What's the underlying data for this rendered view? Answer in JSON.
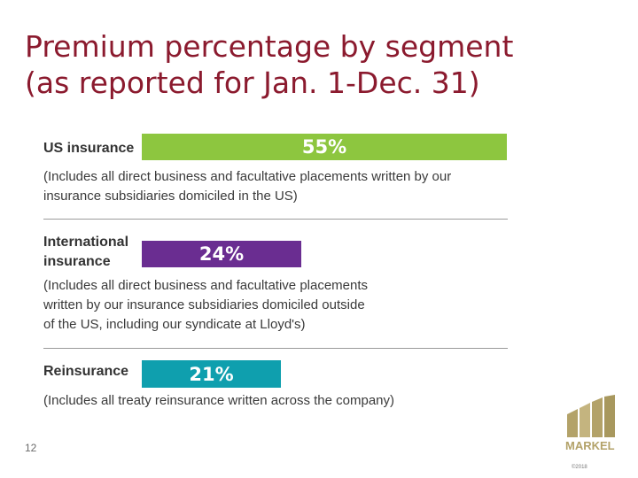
{
  "title_lines": [
    "Premium percentage by segment",
    "(as reported for Jan. 1-Dec. 31)"
  ],
  "page_number": "12",
  "logo_text": "MARKEL",
  "footnote": "©2018",
  "chart_data": {
    "type": "bar",
    "categories": [
      "US insurance",
      "International insurance",
      "Reinsurance"
    ],
    "values": [
      55,
      24,
      21
    ],
    "value_labels": [
      "55%",
      "24%",
      "21%"
    ],
    "label_lines": [
      [
        "US insurance"
      ],
      [
        "International",
        "insurance"
      ],
      [
        "Reinsurance"
      ]
    ],
    "notes": [
      [
        "(Includes all direct business and facultative placements written by our",
        "insurance subsidiaries domiciled in the US)"
      ],
      [
        "(Includes all direct business and facultative placements",
        "written by our insurance subsidiaries domiciled outside",
        "of the US, including our syndicate at Lloyd's)"
      ],
      [
        "(Includes all treaty reinsurance written across the company)"
      ]
    ],
    "colors": [
      "#8dc63f",
      "#6a2d91",
      "#0f9fae"
    ],
    "xlim": [
      0,
      55
    ],
    "title": "",
    "xlabel": "",
    "ylabel": ""
  }
}
